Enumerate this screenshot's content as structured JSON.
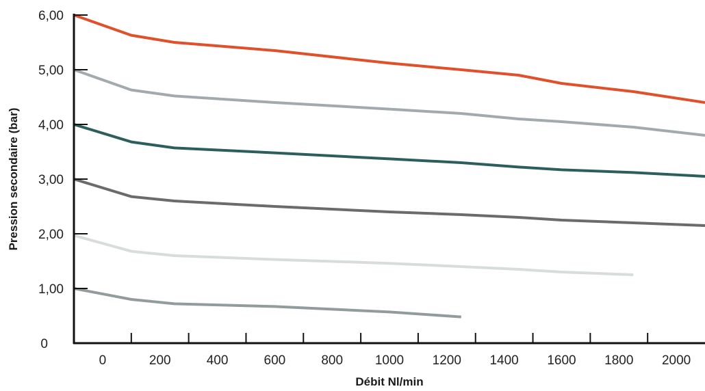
{
  "chart_data": {
    "type": "line",
    "title": "",
    "xlabel": "Débit Nl/min",
    "ylabel": "Pression secondaire (bar)",
    "xlim": [
      -100,
      2100
    ],
    "ylim": [
      0,
      6
    ],
    "x_ticks": [
      0,
      200,
      400,
      600,
      800,
      1000,
      1200,
      1400,
      1600,
      1800,
      2000
    ],
    "x_tick_labels": [
      "0",
      "200",
      "400",
      "600",
      "800",
      "1000",
      "1200",
      "1400",
      "1600",
      "1800",
      "2000"
    ],
    "y_ticks": [
      0,
      1,
      2,
      3,
      4,
      5,
      6
    ],
    "y_tick_labels": [
      "0",
      "1,00",
      "2,00",
      "3,00",
      "4,00",
      "5,00",
      "6,00"
    ],
    "grid": false,
    "legend": "none",
    "series": [
      {
        "color": "#e0502a",
        "x": [
          -100,
          100,
          250,
          600,
          1000,
          1250,
          1450,
          1600,
          1850,
          2100
        ],
        "y": [
          6.0,
          5.63,
          5.5,
          5.35,
          5.12,
          5.0,
          4.9,
          4.75,
          4.6,
          4.4
        ]
      },
      {
        "color": "#a2aaad",
        "x": [
          -100,
          100,
          250,
          600,
          1000,
          1250,
          1450,
          1600,
          1850,
          2100
        ],
        "y": [
          5.0,
          4.63,
          4.52,
          4.4,
          4.28,
          4.2,
          4.1,
          4.05,
          3.95,
          3.8
        ]
      },
      {
        "color": "#2d5e5e",
        "x": [
          -100,
          100,
          250,
          600,
          1000,
          1250,
          1450,
          1600,
          1850,
          2100
        ],
        "y": [
          4.0,
          3.68,
          3.57,
          3.48,
          3.37,
          3.3,
          3.22,
          3.17,
          3.12,
          3.05
        ]
      },
      {
        "color": "#6b6b6e",
        "x": [
          -100,
          100,
          250,
          600,
          1000,
          1250,
          1450,
          1600,
          1850,
          2100
        ],
        "y": [
          3.0,
          2.68,
          2.6,
          2.5,
          2.4,
          2.35,
          2.3,
          2.25,
          2.2,
          2.15
        ]
      },
      {
        "color": "#d8dcdd",
        "x": [
          -100,
          100,
          250,
          600,
          1000,
          1250,
          1450,
          1600,
          1850
        ],
        "y": [
          1.97,
          1.68,
          1.6,
          1.53,
          1.46,
          1.4,
          1.35,
          1.3,
          1.25
        ]
      },
      {
        "color": "#939c9c",
        "x": [
          -100,
          100,
          250,
          600,
          1000,
          1250
        ],
        "y": [
          1.0,
          0.8,
          0.72,
          0.67,
          0.57,
          0.48
        ]
      }
    ]
  }
}
